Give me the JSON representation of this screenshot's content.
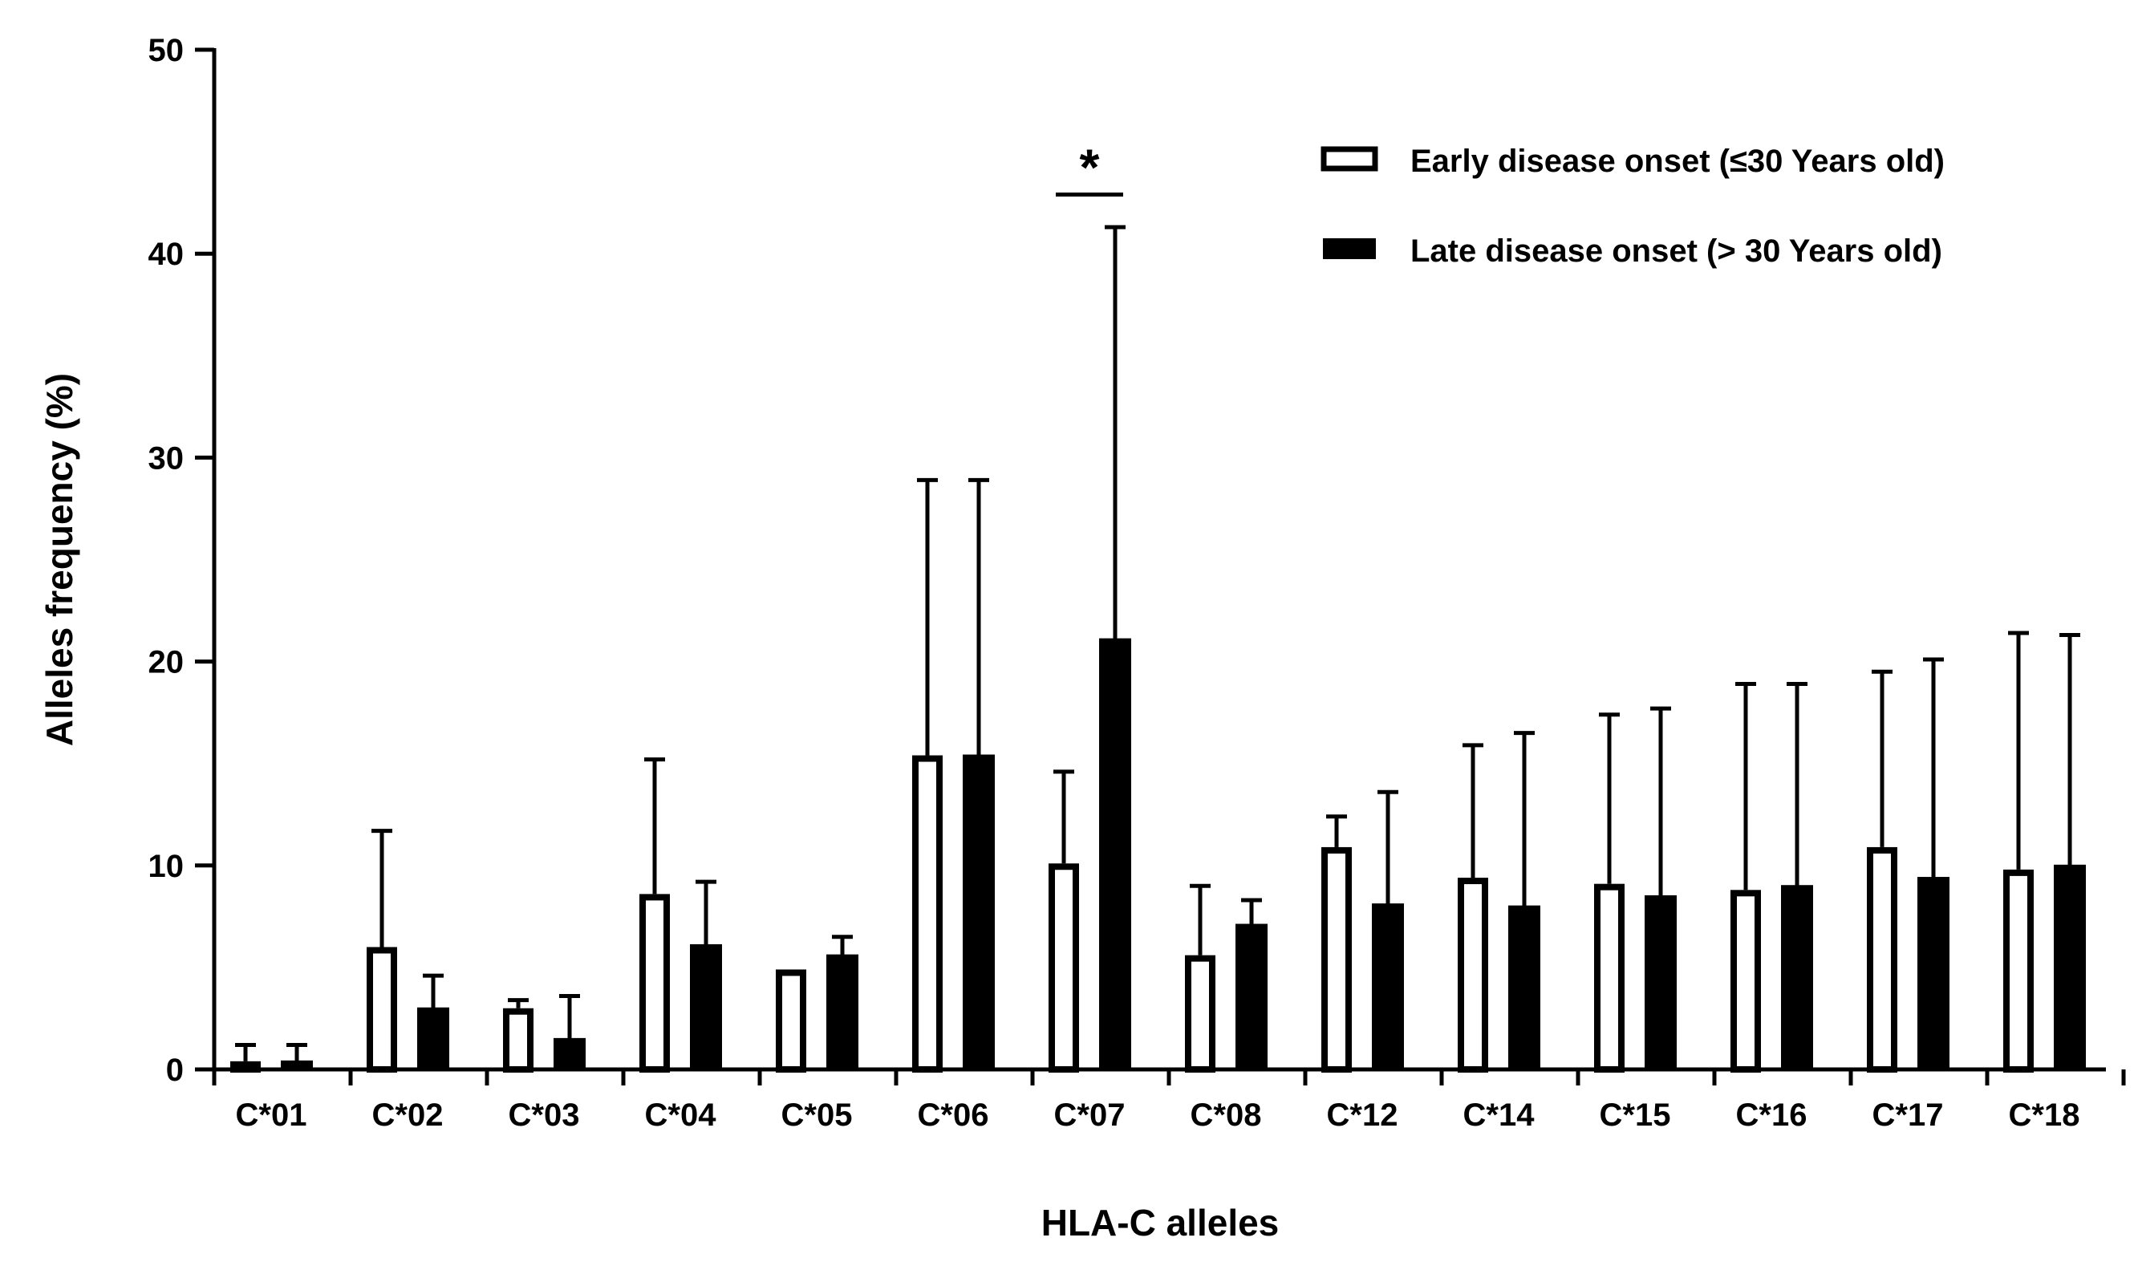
{
  "chart_data": {
    "type": "bar",
    "title": "",
    "xlabel": "HLA-C alleles",
    "ylabel": "Alleles frequency (%)",
    "ylim": [
      0,
      50
    ],
    "yticks": [
      0,
      10,
      20,
      30,
      40,
      50
    ],
    "tick_labels": [
      "0",
      "10",
      "20",
      "30",
      "40",
      "50"
    ],
    "grid": false,
    "legend_position": "top-right",
    "categories": [
      "C*01",
      "C*02",
      "C*03",
      "C*04",
      "C*05",
      "C*06",
      "C*07",
      "C*08",
      "C*12",
      "C*14",
      "C*15",
      "C*16",
      "C*17",
      "C*18"
    ],
    "series": [
      {
        "name": "Early disease onset (≤30 Years old)",
        "style": "open",
        "values": [
          0.4,
          6.0,
          3.0,
          8.6,
          4.9,
          15.4,
          10.1,
          5.6,
          10.9,
          9.4,
          9.1,
          8.8,
          10.9,
          9.8
        ],
        "errors": [
          0.8,
          5.7,
          0.4,
          6.6,
          0.0,
          13.5,
          4.5,
          3.4,
          1.5,
          6.5,
          8.3,
          10.1,
          8.6,
          11.6
        ]
      },
      {
        "name": "Late disease onset (> 30 Years old)",
        "style": "filled",
        "values": [
          0.4,
          3.0,
          1.5,
          6.1,
          5.6,
          15.4,
          21.1,
          7.1,
          8.1,
          8.0,
          8.5,
          9.0,
          9.4,
          10.0
        ],
        "errors": [
          0.8,
          1.6,
          2.1,
          3.1,
          0.9,
          13.5,
          20.2,
          1.2,
          5.5,
          8.5,
          9.2,
          9.9,
          10.7,
          11.3
        ]
      }
    ],
    "annotations": [
      {
        "text": "*",
        "category": "C*07",
        "bracket_y": 42.9
      }
    ]
  }
}
